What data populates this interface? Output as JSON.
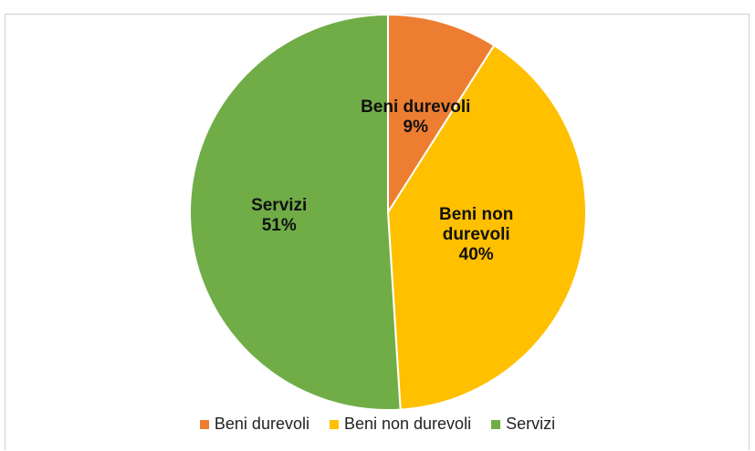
{
  "chart_data": {
    "type": "pie",
    "categories": [
      "Beni durevoli",
      "Beni non durevoli",
      "Servizi"
    ],
    "values": [
      9,
      40,
      51
    ],
    "value_labels": [
      "9%",
      "40%",
      "51%"
    ],
    "colors": [
      "#ED7D31",
      "#FFC000",
      "#70AD47"
    ],
    "legend": "bottom"
  }
}
